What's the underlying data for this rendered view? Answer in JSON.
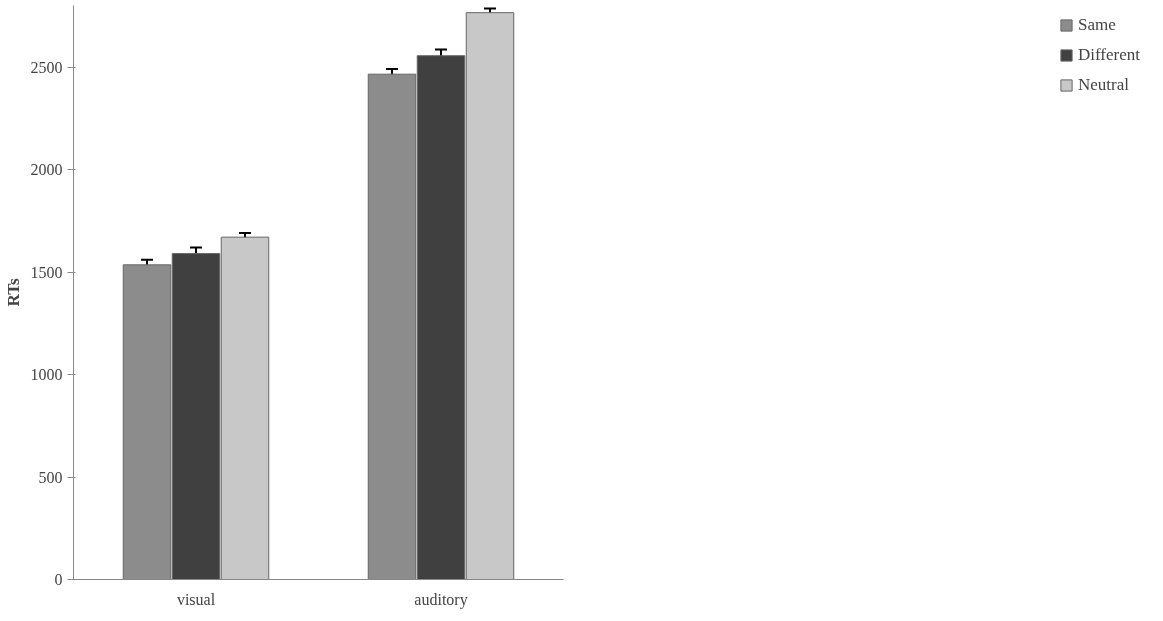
{
  "chart_data": {
    "type": "bar",
    "ylabel": "RTs",
    "categories": [
      "visual",
      "auditory"
    ],
    "series": [
      {
        "name": "Same",
        "color": "#8c8c8c",
        "values": [
          1535,
          2465
        ],
        "errors": [
          25,
          25
        ]
      },
      {
        "name": "Different",
        "color": "#404040",
        "values": [
          1590,
          2555
        ],
        "errors": [
          30,
          30
        ]
      },
      {
        "name": "Neutral",
        "color": "#c8c8c8",
        "values": [
          1670,
          2765
        ],
        "errors": [
          20,
          20
        ]
      }
    ],
    "ylim": [
      0,
      2800
    ],
    "yticks": [
      0,
      500,
      1000,
      1500,
      2000,
      2500
    ],
    "grid": false,
    "legend": "right"
  }
}
